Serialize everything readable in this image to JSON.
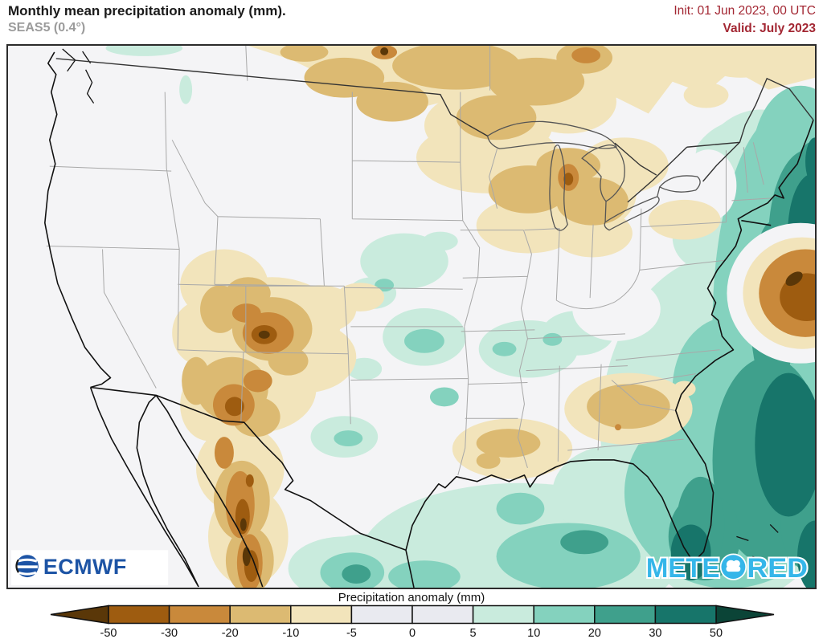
{
  "header": {
    "title": "Monthly mean precipitation anomaly (mm).",
    "subtitle": "SEAS5 (0.4°)",
    "init_label": "Init: 01 Jun 2023, 00 UTC",
    "valid_label": "Valid: July 2023",
    "accent_color": "#a32733",
    "subtitle_color": "#9b9b9b"
  },
  "map": {
    "description": "Filled-contour precipitation anomaly forecast map of the contiguous United States, northern Mexico and western Atlantic",
    "logos": {
      "ecmwf_text": "ECMWF",
      "meteored_left": "METE",
      "meteored_right": "RED",
      "ecmwf_blue": "#1d54a5",
      "meteored_blue": "#35b6e9"
    }
  },
  "colorbar": {
    "label": "Precipitation anomaly (mm)",
    "ticks": [
      "-50",
      "-30",
      "-20",
      "-10",
      "-5",
      "0",
      "5",
      "10",
      "20",
      "30",
      "50"
    ],
    "segment_colors": [
      "#9e5c10",
      "#c9893b",
      "#dcba72",
      "#f2e4bb",
      "#e9eaf0",
      "#e9eaf0",
      "#c9ebdd",
      "#84d2be",
      "#3fa08c",
      "#17756a"
    ],
    "arrow_left_color": "#5a3708",
    "arrow_right_color": "#0b4437",
    "outline_color": "#111111"
  },
  "palette": {
    "dry_dark": "#5a3708",
    "dry_strong": "#9e5c10",
    "dry_mid": "#c9893b",
    "dry_light": "#dcba72",
    "dry_faint": "#f2e4bb",
    "neutral": "#e9eaf0",
    "land_base": "#f4f4f6",
    "wet_faint": "#c9ebdd",
    "wet_light": "#84d2be",
    "wet_mid": "#3fa08c",
    "wet_strong": "#17756a",
    "wet_dark": "#0b4437"
  }
}
